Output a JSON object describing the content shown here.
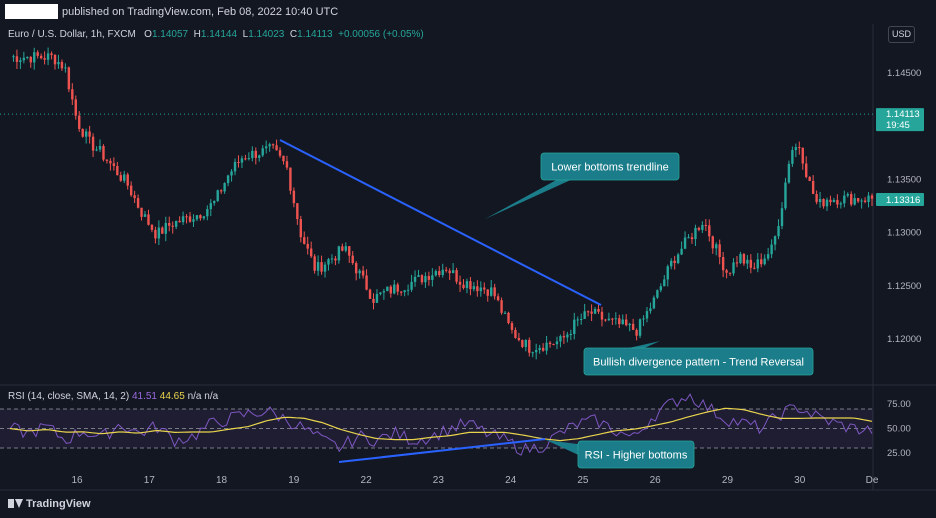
{
  "header": {
    "published_text": "published on TradingView.com, Feb 08, 2022 10:40 UTC",
    "symbol": "Euro / U.S. Dollar, 1h, FXCM",
    "ohlc": {
      "o_label": "O",
      "o": "1.14057",
      "h_label": "H",
      "h": "1.14144",
      "l_label": "L",
      "l": "1.14023",
      "c_label": "C",
      "c": "1.14113",
      "change": "+0.00056 (+0.05%)"
    },
    "currency_button": "USD"
  },
  "rsi_legend": {
    "label": "RSI (14, close, SMA, 14, 2)",
    "rsi": "41.51",
    "ma": "44.65",
    "na": "n/a  n/a"
  },
  "annotations": {
    "trendline": "Lower bottoms trendline",
    "divergence": "Bullish divergence pattern - Trend Reversal",
    "rsi_bottoms": "RSI - Higher bottoms"
  },
  "footer": {
    "logo": "TradingView"
  },
  "colors": {
    "background": "#131722",
    "up": "#26a69a",
    "down": "#ef5350",
    "rsi": "#7e57c2",
    "rsi_ma": "#e8d44d",
    "trendline": "#2962ff",
    "callout": "#1b7d8a"
  },
  "chart_data": {
    "type": "candlestick",
    "x_tick_labels": [
      "16",
      "17",
      "18",
      "19",
      "22",
      "23",
      "24",
      "25",
      "26",
      "29",
      "30",
      "De"
    ],
    "price_axis": {
      "ylim": [
        1.1175,
        1.1475
      ],
      "tick_labels": [
        "1.14500",
        "1.14000",
        "1.13500",
        "1.13000",
        "1.12500",
        "1.12000"
      ],
      "last_price": "1.14113",
      "last_time": "19:45",
      "marker": "1.13316"
    },
    "price_path": [
      [
        "16",
        1.1465
      ],
      [
        "16",
        1.1455
      ],
      [
        "16",
        1.1405
      ],
      [
        "16",
        1.1385
      ],
      [
        "16",
        1.1375
      ],
      [
        "17",
        1.1345
      ],
      [
        "17",
        1.1318
      ],
      [
        "17",
        1.1298
      ],
      [
        "17",
        1.1308
      ],
      [
        "18",
        1.1318
      ],
      [
        "18",
        1.1328
      ],
      [
        "18",
        1.1355
      ],
      [
        "18",
        1.1372
      ],
      [
        "19",
        1.1378
      ],
      [
        "19",
        1.1362
      ],
      [
        "19",
        1.1298
      ],
      [
        "19",
        1.1265
      ],
      [
        "22",
        1.1285
      ],
      [
        "22",
        1.1262
      ],
      [
        "22",
        1.1238
      ],
      [
        "22",
        1.1245
      ],
      [
        "23",
        1.1255
      ],
      [
        "23",
        1.1262
      ],
      [
        "23",
        1.1268
      ],
      [
        "23",
        1.1255
      ],
      [
        "24",
        1.1245
      ],
      [
        "24",
        1.1208
      ],
      [
        "24",
        1.1192
      ],
      [
        "25",
        1.1198
      ],
      [
        "25",
        1.1215
      ],
      [
        "25",
        1.1225
      ],
      [
        "25",
        1.1218
      ],
      [
        "26",
        1.1208
      ],
      [
        "26",
        1.1238
      ],
      [
        "26",
        1.1275
      ],
      [
        "29",
        1.1312
      ],
      [
        "29",
        1.1285
      ],
      [
        "29",
        1.1262
      ],
      [
        "29",
        1.1278
      ],
      [
        "29",
        1.1265
      ],
      [
        "30",
        1.1285
      ],
      [
        "30",
        1.1325
      ],
      [
        "30",
        1.1378
      ],
      [
        "30",
        1.1382
      ],
      [
        "30",
        1.1348
      ],
      [
        "30",
        1.1325
      ],
      [
        "30",
        1.1332
      ]
    ],
    "rsi": {
      "name": "RSI",
      "ylim": [
        0,
        100
      ],
      "tick_labels": [
        "75.00",
        "50.00",
        "25.00"
      ],
      "levels": [
        70,
        50,
        30
      ],
      "values": [
        50,
        45,
        52,
        38,
        48,
        40,
        55,
        45,
        52,
        38,
        42,
        55,
        60,
        65,
        68,
        60,
        50,
        38,
        30,
        42,
        38,
        45,
        38,
        42,
        50,
        55,
        45,
        38,
        28,
        32,
        45,
        55,
        58,
        48,
        40,
        62,
        75,
        85,
        72,
        60,
        55,
        50,
        65,
        72,
        62,
        55,
        50,
        48
      ]
    }
  }
}
